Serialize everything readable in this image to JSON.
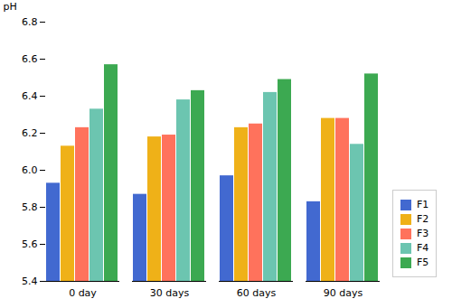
{
  "chart_data": {
    "type": "bar",
    "categories": [
      "0 day",
      "30 days",
      "60 days",
      "90 days"
    ],
    "series": [
      {
        "name": "F1",
        "values": [
          5.93,
          5.87,
          5.97,
          5.83
        ]
      },
      {
        "name": "F2",
        "values": [
          6.13,
          6.18,
          6.23,
          6.28
        ]
      },
      {
        "name": "F3",
        "values": [
          6.23,
          6.19,
          6.25,
          6.28
        ]
      },
      {
        "name": "F4",
        "values": [
          6.33,
          6.38,
          6.42,
          6.14
        ]
      },
      {
        "name": "F5",
        "values": [
          6.57,
          6.43,
          6.49,
          6.52
        ]
      }
    ],
    "ylabel": "pH",
    "ylim": [
      5.4,
      6.8
    ],
    "yticks": [
      5.4,
      5.6,
      5.8,
      {
        "value": 6,
        "label": "6.0"
      },
      6.2,
      6.4,
      6.6,
      6.8
    ],
    "grid": false,
    "legend": "lower right"
  }
}
